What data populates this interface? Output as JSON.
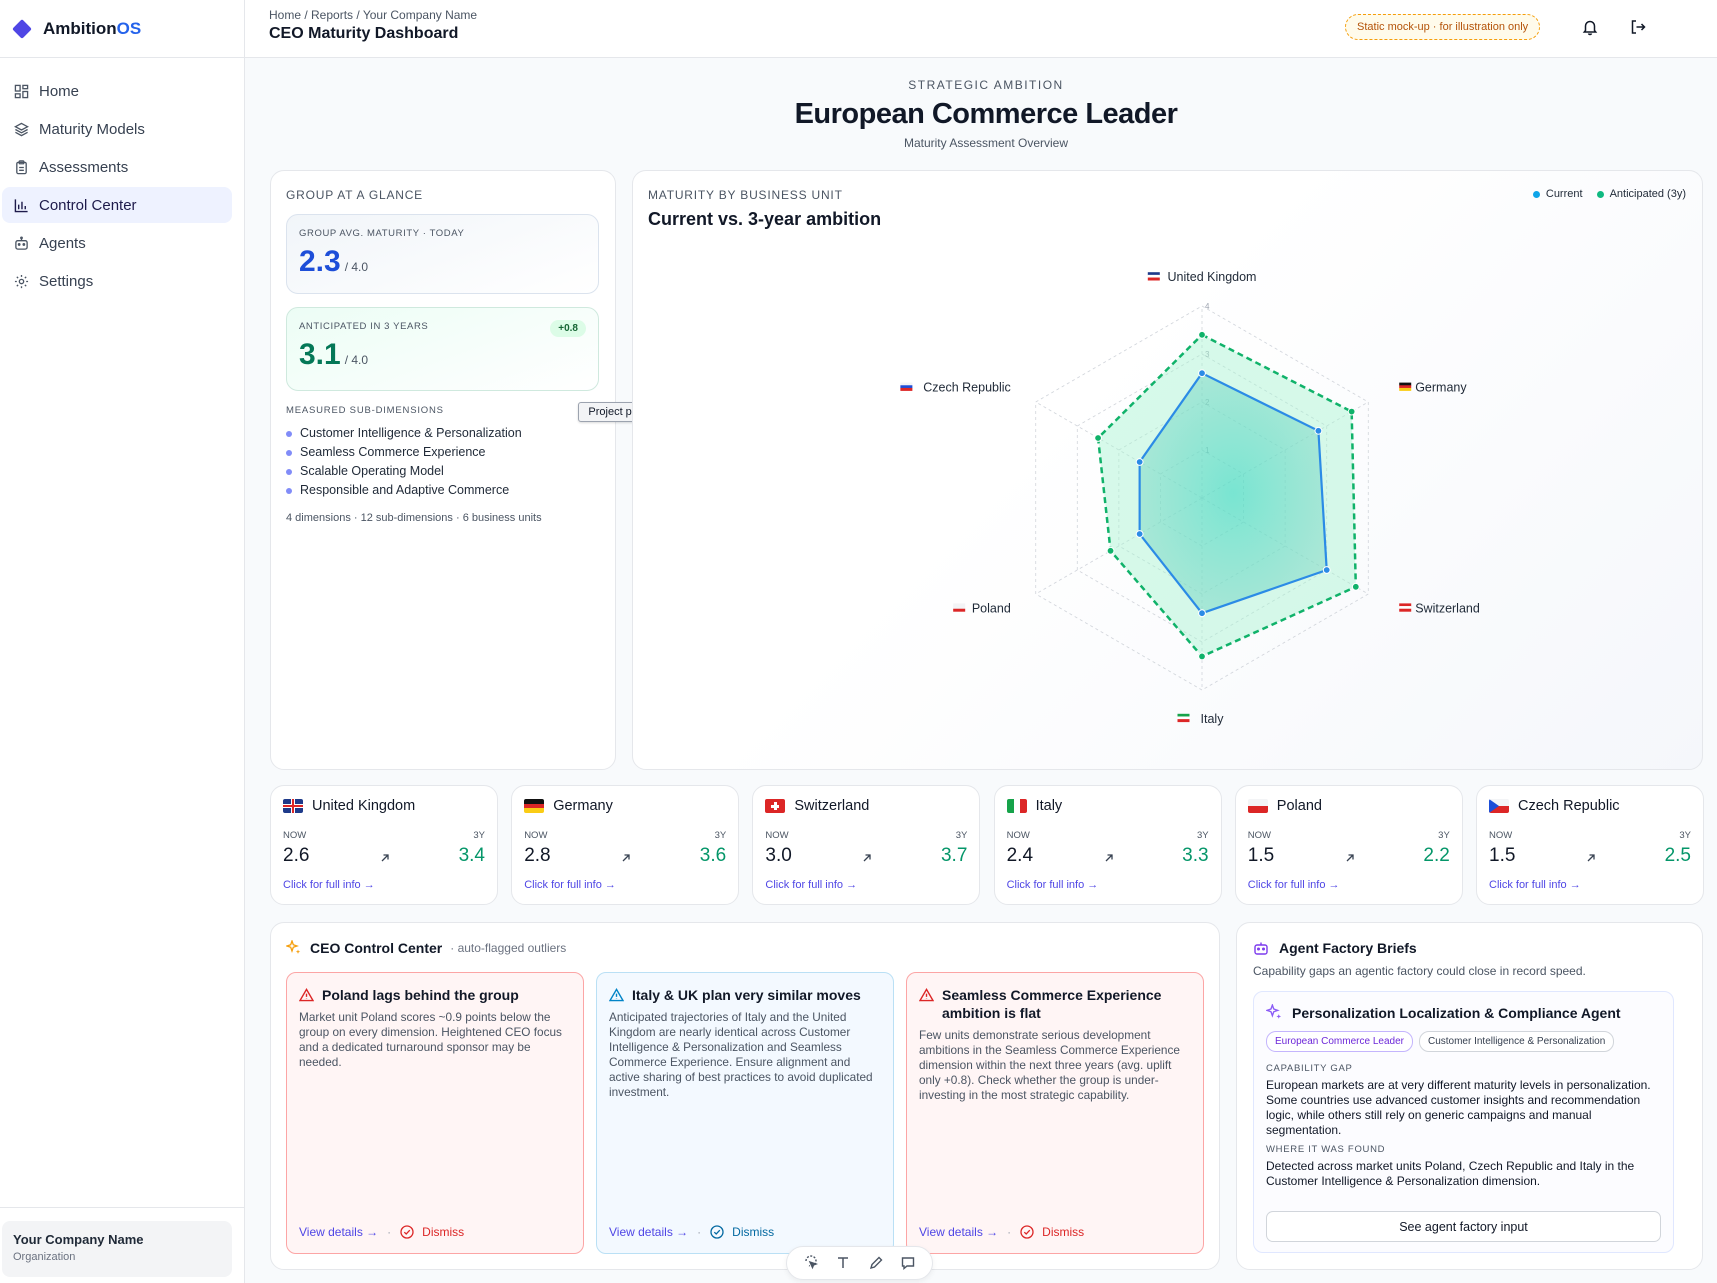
{
  "brand": {
    "name_prefix": "Ambition",
    "name_suffix": "OS"
  },
  "sidebar": {
    "items": [
      {
        "label": "Home",
        "icon": "grid-icon"
      },
      {
        "label": "Maturity Models",
        "icon": "layers-icon"
      },
      {
        "label": "Assessments",
        "icon": "clipboard-icon"
      },
      {
        "label": "Control Center",
        "icon": "bar-chart-icon",
        "active": true
      },
      {
        "label": "Agents",
        "icon": "robot-icon"
      },
      {
        "label": "Settings",
        "icon": "gear-icon"
      }
    ],
    "org": {
      "name": "Your Company Name",
      "type": "Organization"
    }
  },
  "topbar": {
    "breadcrumb": "Home / Reports / Your Company Name",
    "title": "CEO Maturity Dashboard",
    "badge": "Static mock-up · for illustration only"
  },
  "hero": {
    "eyebrow": "STRATEGIC AMBITION",
    "title": "European Commerce Leader",
    "subtitle": "Maturity Assessment Overview"
  },
  "glance": {
    "label": "GROUP AT A GLANCE",
    "today_label": "GROUP AVG. MATURITY · TODAY",
    "today_value": "2.3",
    "today_denom": "/ 4.0",
    "future_label": "ANTICIPATED IN 3 YEARS",
    "future_value": "3.1",
    "future_denom": "/ 4.0",
    "future_delta": "+0.8",
    "subdims_label": "MEASURED SUB-DIMENSIONS",
    "subdims": [
      "Customer Intelligence & Personalization",
      "Seamless Commerce Experience",
      "Scalable Operating Model",
      "Responsible and Adaptive Commerce"
    ],
    "footnote": "4 dimensions · 12 sub-dimensions · 6 business units",
    "tooltip": "Project preview"
  },
  "radar": {
    "label": "MATURITY BY BUSINESS UNIT",
    "title": "Current vs. 3-year ambition",
    "legend_current": "Current",
    "legend_anticipated": "Anticipated (3y)",
    "colors": {
      "current": "#2b8be6",
      "anticipated": "#10b26a"
    }
  },
  "chart_data": {
    "type": "radar",
    "categories": [
      "United Kingdom",
      "Germany",
      "Switzerland",
      "Italy",
      "Poland",
      "Czech Republic"
    ],
    "series": [
      {
        "name": "Current",
        "values": [
          2.6,
          2.8,
          3.0,
          2.4,
          1.5,
          1.5
        ]
      },
      {
        "name": "Anticipated (3y)",
        "values": [
          3.4,
          3.6,
          3.7,
          3.3,
          2.2,
          2.5
        ]
      }
    ],
    "rlim": [
      0,
      4
    ],
    "ticks": [
      "0",
      "1",
      "2",
      "3",
      "4"
    ]
  },
  "units": [
    {
      "name": "United Kingdom",
      "flag": "uk-flag-icon",
      "now_label": "NOW",
      "future_label": "3Y",
      "now": "2.6",
      "future": "3.4",
      "link": "Click for full info →"
    },
    {
      "name": "Germany",
      "flag": "germany-flag-icon",
      "now_label": "NOW",
      "future_label": "3Y",
      "now": "2.8",
      "future": "3.6",
      "link": "Click for full info →"
    },
    {
      "name": "Switzerland",
      "flag": "switzerland-flag-icon",
      "now_label": "NOW",
      "future_label": "3Y",
      "now": "3.0",
      "future": "3.7",
      "link": "Click for full info →"
    },
    {
      "name": "Italy",
      "flag": "italy-flag-icon",
      "now_label": "NOW",
      "future_label": "3Y",
      "now": "2.4",
      "future": "3.3",
      "link": "Click for full info →"
    },
    {
      "name": "Poland",
      "flag": "poland-flag-icon",
      "now_label": "NOW",
      "future_label": "3Y",
      "now": "1.5",
      "future": "2.2",
      "link": "Click for full info →"
    },
    {
      "name": "Czech Republic",
      "flag": "czech-flag-icon",
      "now_label": "NOW",
      "future_label": "3Y",
      "now": "1.5",
      "future": "2.5",
      "link": "Click for full info →"
    }
  ],
  "control_center": {
    "title": "CEO Control Center",
    "subtitle": "· auto-flagged outliers",
    "cards": [
      {
        "title": "Poland lags behind the group",
        "body": "Market unit Poland scores ~0.9 points below the group on every dimension. Heightened CEO focus and a dedicated turnaround sponsor may be needed.",
        "view": "View details →",
        "dismiss": "Dismiss",
        "tone": "red"
      },
      {
        "title": "Italy & UK plan very similar moves",
        "body": "Anticipated trajectories of Italy and the United Kingdom are nearly identical across Customer Intelligence & Personalization and Seamless Commerce Experience. Ensure alignment and active sharing of best practices to avoid duplicated investment.",
        "view": "View details →",
        "dismiss": "Dismiss",
        "tone": "blue"
      },
      {
        "title": "Seamless Commerce Experience ambition is flat",
        "body": "Few units demonstrate serious development ambitions in the Seamless Commerce Experience dimension within the next three years (avg. uplift only +0.8). Check whether the group is under-investing in the most strategic capability.",
        "view": "View details →",
        "dismiss": "Dismiss",
        "tone": "red"
      }
    ]
  },
  "agent_factory": {
    "title": "Agent Factory Briefs",
    "subtitle": "Capability gaps an agentic factory could close in record speed.",
    "agent_title": "Personalization Localization & Compliance Agent",
    "tags": [
      "European Commerce Leader",
      "Customer Intelligence & Personalization"
    ],
    "gap_label": "CAPABILITY GAP",
    "gap_text": "European markets are at very different maturity levels in personalization. Some countries use advanced customer insights and recommendation logic, while others still rely on generic campaigns and manual segmentation.",
    "found_label": "WHERE IT WAS FOUND",
    "found_text": "Detected across market units Poland, Czech Republic and Italy in the Customer Intelligence & Personalization dimension.",
    "button": "See agent factory input"
  }
}
